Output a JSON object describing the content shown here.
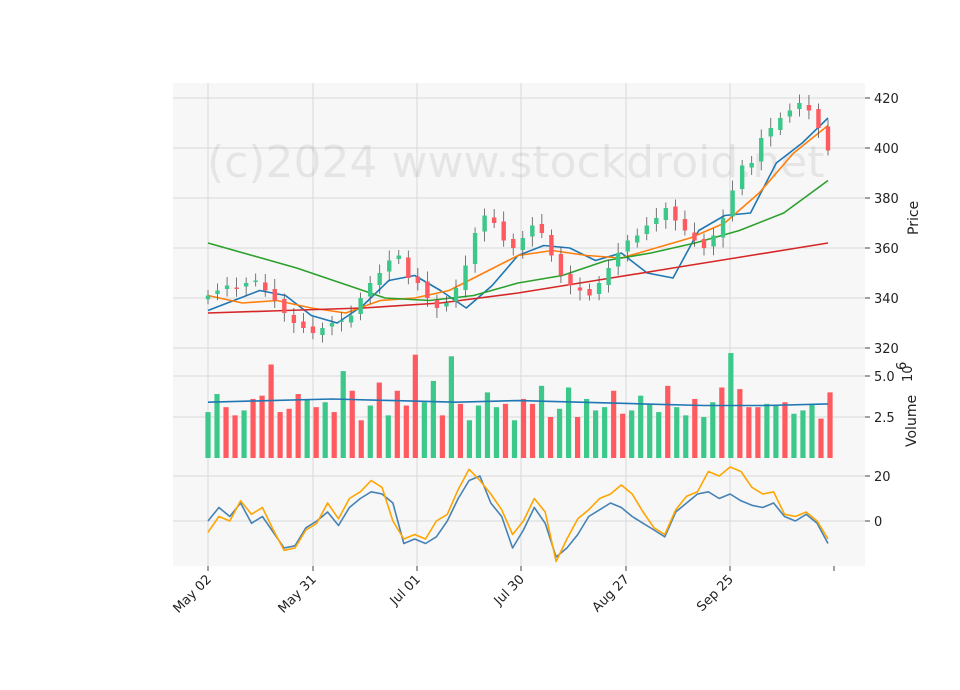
{
  "watermark": "(c)2024 www.stockdroid.net",
  "price_axis_label": "Price",
  "volume_axis_label": "Volume",
  "volume_exponent": "10^6",
  "chart_data": [
    {
      "type": "candlestick",
      "panel": "price",
      "ylabel": "Price",
      "ylim": [
        320,
        425
      ],
      "yticks": [
        "320",
        "340",
        "360",
        "380",
        "400",
        "420"
      ],
      "grid": true,
      "x": [
        "May 02",
        "May 31",
        "Jul 01",
        "Jul 30",
        "Aug 27",
        "Sep 25"
      ],
      "candles_close": [
        341,
        343,
        345,
        344,
        346,
        347,
        343,
        339,
        334,
        330,
        328,
        326,
        328,
        330,
        331,
        333,
        340,
        346,
        350,
        355,
        357,
        348,
        346,
        340,
        336,
        338,
        344,
        353,
        366,
        373,
        370,
        363,
        360,
        364,
        369,
        366,
        357,
        349,
        345,
        343,
        341,
        346,
        352,
        358,
        363,
        365,
        369,
        372,
        376,
        371,
        367,
        363,
        360,
        365,
        372,
        383,
        393,
        394,
        404,
        408,
        412,
        415,
        418,
        415,
        408,
        399
      ],
      "moving_averages": [
        {
          "name": "MA10",
          "color": "#1f77b4",
          "values": [
            335,
            339,
            343,
            341,
            333,
            330,
            337,
            347,
            349,
            343,
            336,
            345,
            357,
            361,
            360,
            355,
            358,
            350,
            348,
            367,
            373,
            374,
            394,
            402,
            412
          ]
        },
        {
          "name": "MA20",
          "color": "#ff7f0e",
          "values": [
            341,
            338,
            339,
            336,
            334,
            339,
            340,
            343,
            350,
            357,
            359,
            357,
            356,
            360,
            364,
            370,
            382,
            398,
            409
          ]
        },
        {
          "name": "MA50",
          "color": "#2ca02c",
          "values": [
            362,
            357,
            352,
            346,
            340,
            339,
            341,
            346,
            349,
            355,
            358,
            362,
            367,
            374,
            387
          ]
        },
        {
          "name": "MA200",
          "color": "#d62728",
          "values": [
            334,
            335,
            336,
            338,
            342,
            347,
            352,
            357,
            362
          ]
        }
      ]
    },
    {
      "type": "bar",
      "panel": "volume",
      "ylabel": "Volume",
      "yunit": "10^6",
      "ylim": [
        0,
        6.5
      ],
      "yticks": [
        "2.5",
        "5.0"
      ],
      "values": [
        2.8,
        3.9,
        3.1,
        2.6,
        2.9,
        3.6,
        3.8,
        5.7,
        2.8,
        3.0,
        3.9,
        3.6,
        3.1,
        3.4,
        2.8,
        5.3,
        4.1,
        2.3,
        3.2,
        4.6,
        2.6,
        4.1,
        3.2,
        6.3,
        3.4,
        4.7,
        2.6,
        6.2,
        3.3,
        2.3,
        3.2,
        4.0,
        3.1,
        3.3,
        2.3,
        3.6,
        3.3,
        4.4,
        2.5,
        3.0,
        4.3,
        2.5,
        3.6,
        2.9,
        3.1,
        4.1,
        2.7,
        2.9,
        3.8,
        3.3,
        2.8,
        4.4,
        3.1,
        2.6,
        3.6,
        2.5,
        3.4,
        4.3,
        6.4,
        4.2,
        3.1,
        3.1,
        3.3,
        3.2,
        3.4,
        2.7,
        2.9,
        3.3,
        2.4,
        4.0
      ],
      "colors": [
        "up",
        "up",
        "down",
        "down",
        "up",
        "down",
        "down",
        "down",
        "down",
        "down",
        "down",
        "up",
        "down",
        "up",
        "down",
        "up",
        "down",
        "down",
        "up",
        "down",
        "up",
        "down",
        "down",
        "down",
        "up",
        "up",
        "down",
        "up",
        "down",
        "up",
        "up",
        "up",
        "up",
        "down",
        "up",
        "down",
        "down",
        "up",
        "down",
        "up",
        "up",
        "down",
        "up",
        "up",
        "up",
        "down",
        "down",
        "up",
        "up",
        "up",
        "up",
        "down",
        "up",
        "up",
        "down",
        "up",
        "up",
        "down",
        "up",
        "down",
        "down",
        "down",
        "up",
        "up",
        "down",
        "up",
        "up",
        "up",
        "down",
        "down"
      ],
      "ma_values": [
        3.4,
        3.5,
        3.6,
        3.5,
        3.4,
        3.5,
        3.4,
        3.3,
        3.2,
        3.2,
        3.3
      ]
    },
    {
      "type": "line",
      "panel": "oscillator",
      "ylim": [
        -20,
        26
      ],
      "yticks": [
        "0",
        "20"
      ],
      "series": [
        {
          "color": "#4682b4",
          "values": [
            0,
            6,
            2,
            8,
            -1,
            2,
            -5,
            -12,
            -11,
            -3,
            0,
            4,
            -2,
            6,
            10,
            13,
            12,
            8,
            -10,
            -8,
            -10,
            -7,
            0,
            10,
            18,
            20,
            8,
            2,
            -12,
            -4,
            6,
            -1,
            -16,
            -12,
            -6,
            2,
            5,
            8,
            6,
            2,
            -1,
            -4,
            -7,
            4,
            8,
            12,
            13,
            10,
            12,
            9,
            7,
            6,
            8,
            2,
            0,
            3,
            -1,
            -10
          ]
        },
        {
          "color": "#ffa500",
          "values": [
            -5,
            2,
            0,
            9,
            3,
            6,
            -4,
            -13,
            -12,
            -4,
            -1,
            8,
            1,
            10,
            13,
            18,
            15,
            0,
            -8,
            -6,
            -8,
            0,
            3,
            14,
            23,
            18,
            12,
            5,
            -6,
            0,
            10,
            4,
            -18,
            -8,
            1,
            5,
            10,
            12,
            16,
            12,
            4,
            -3,
            -6,
            5,
            11,
            13,
            22,
            20,
            24,
            22,
            15,
            12,
            13,
            3,
            2,
            4,
            0,
            -8
          ]
        }
      ]
    }
  ],
  "colors": {
    "up": "#3cc88a",
    "down": "#ff5a5f",
    "grid": "#d9d9d9",
    "panel_bg": "#f7f7f7"
  }
}
